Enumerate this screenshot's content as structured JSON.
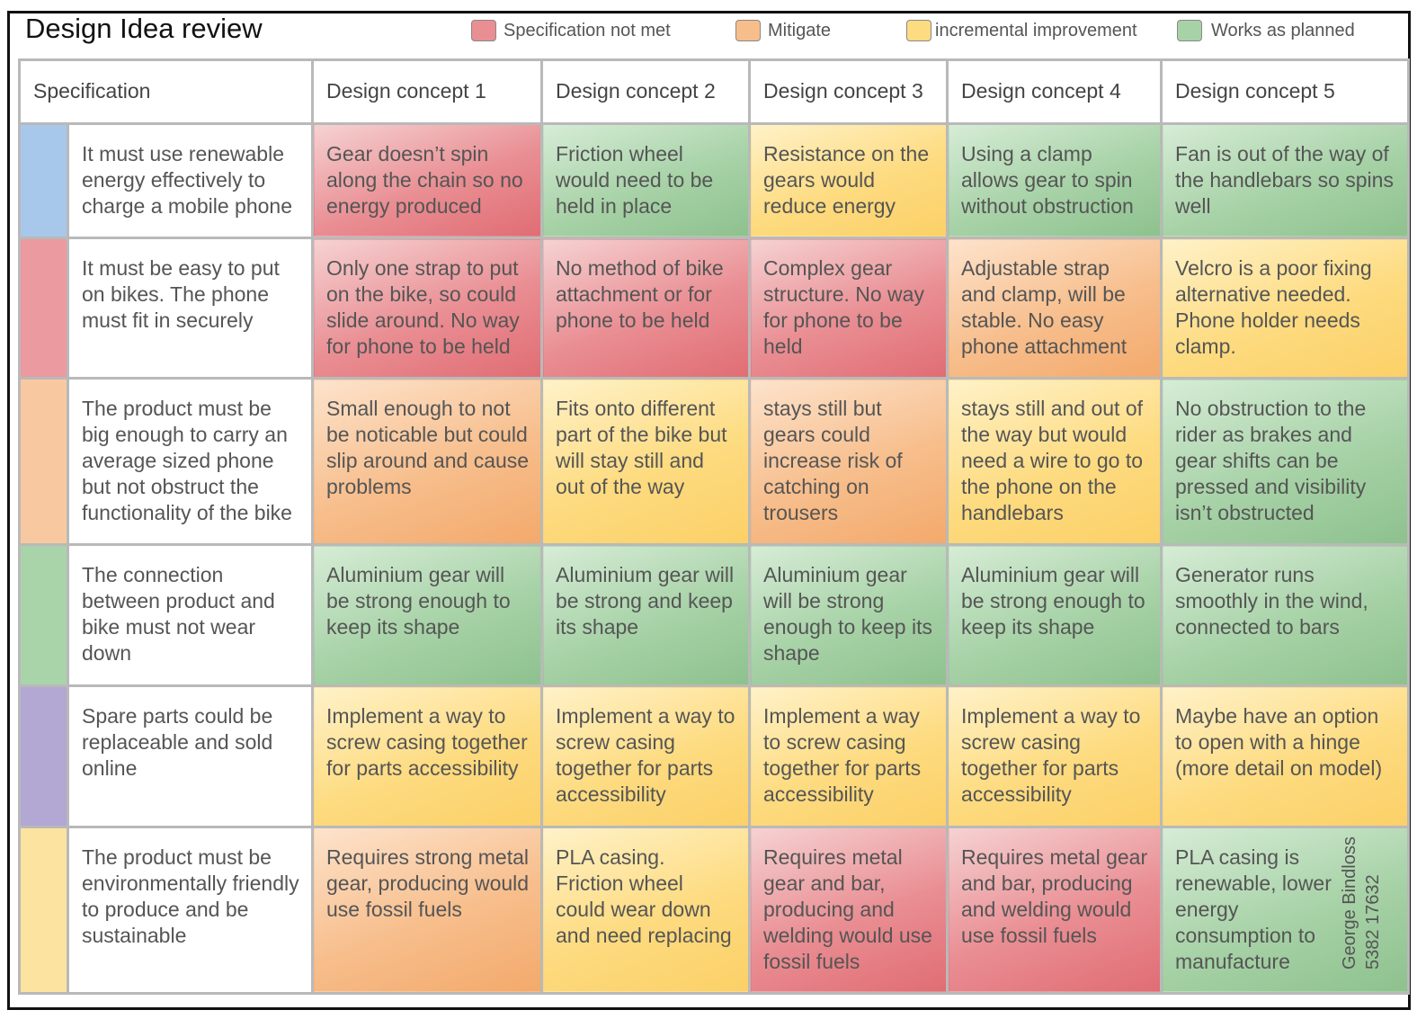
{
  "title": "Design Idea review",
  "legend": [
    {
      "label": "Specification not met",
      "color": "#e98e93"
    },
    {
      "label": "Mitigate",
      "color": "#f7be8c"
    },
    {
      "label": "incremental improvement",
      "color": "#fddb80"
    },
    {
      "label": "Works as planned",
      "color": "#a7d2a7"
    }
  ],
  "headers": [
    "Specification",
    "Design concept 1",
    "Design concept 2",
    "Design concept 3",
    "Design concept 4",
    "Design concept 5"
  ],
  "rows": [
    {
      "bar_color": "#a7c8ea",
      "spec": "It must use renewable energy effectively to charge a mobile phone",
      "cells": [
        {
          "text": "Gear doesn’t spin along the chain so no energy produced",
          "status": "red"
        },
        {
          "text": "Friction wheel would need to be held in place",
          "status": "green"
        },
        {
          "text": "Resistance on the gears would reduce energy",
          "status": "yellow"
        },
        {
          "text": "Using a clamp allows gear to spin without obstruction",
          "status": "green"
        },
        {
          "text": "Fan is out of the way of the handlebars so spins well",
          "status": "green"
        }
      ]
    },
    {
      "bar_color": "#eb9aa0",
      "spec": "It must be easy to put on bikes. The phone must fit in securely",
      "cells": [
        {
          "text": "Only one strap to put on the bike, so could slide around. No way for phone to be held",
          "status": "red"
        },
        {
          "text": "No method of bike attachment or for phone to be held",
          "status": "red"
        },
        {
          "text": "Complex gear structure. No way for phone to be held",
          "status": "red"
        },
        {
          "text": "Adjustable strap and clamp, will be stable. No easy phone attachment",
          "status": "orange"
        },
        {
          "text": "Velcro is a poor fixing alternative needed. Phone holder needs clamp.",
          "status": "yellow"
        }
      ]
    },
    {
      "bar_color": "#f8c9a0",
      "spec": "The product must be big enough to carry an average sized phone but not obstruct the functionality of the bike",
      "cells": [
        {
          "text": "Small enough to not be noticable but could slip around and cause problems",
          "status": "orange"
        },
        {
          "text": "Fits onto different part of the bike but will stay still and out of the way",
          "status": "yellow"
        },
        {
          "text": "stays still but gears could increase risk of catching on trousers",
          "status": "orange"
        },
        {
          "text": "stays still and out of the way but would need a wire to go to the phone on the handlebars",
          "status": "yellow"
        },
        {
          "text": "No obstruction to the rider as brakes and gear shifts can be pressed and visibility isn’t obstructed",
          "status": "green"
        }
      ]
    },
    {
      "bar_color": "#a9d4a9",
      "spec": "The connection between product and bike must not wear down",
      "cells": [
        {
          "text": "Aluminium gear will be strong enough to keep its shape",
          "status": "green"
        },
        {
          "text": "Aluminium gear will be strong and keep its shape",
          "status": "green"
        },
        {
          "text": "Aluminium gear will be strong enough to keep its shape",
          "status": "green"
        },
        {
          "text": "Aluminium gear will be strong enough to keep its shape",
          "status": "green"
        },
        {
          "text": "Generator runs smoothly in the wind, connected to bars",
          "status": "green"
        }
      ]
    },
    {
      "bar_color": "#b3a7d4",
      "spec": "Spare parts could be replaceable and sold online",
      "cells": [
        {
          "text": "Implement a way to screw casing together for parts accessibility",
          "status": "yellow"
        },
        {
          "text": "Implement a way to screw casing together for parts accessibility",
          "status": "yellow"
        },
        {
          "text": "Implement a way to screw casing together for parts accessibility",
          "status": "yellow"
        },
        {
          "text": "Implement a way to screw casing together for parts accessibility",
          "status": "yellow"
        },
        {
          "text": "Maybe have an option to open with a hinge (more detail on model)",
          "status": "yellow"
        }
      ]
    },
    {
      "bar_color": "#fde3a0",
      "spec": "The product must be environmentally friendly to produce and be sustainable",
      "cells": [
        {
          "text": "Requires strong metal gear, producing would use fossil fuels",
          "status": "orange"
        },
        {
          "text": "PLA casing. Friction wheel could wear down and need replacing",
          "status": "yellow"
        },
        {
          "text": "Requires metal gear and bar, producing and welding would use fossil fuels",
          "status": "red"
        },
        {
          "text": "Requires metal gear and bar, producing and welding would use fossil fuels",
          "status": "red"
        },
        {
          "text": "PLA casing is renewable, lower energy consumption to manufacture",
          "status": "green"
        }
      ]
    }
  ],
  "author": {
    "name": "George Bindloss",
    "id": "5382 17632"
  }
}
